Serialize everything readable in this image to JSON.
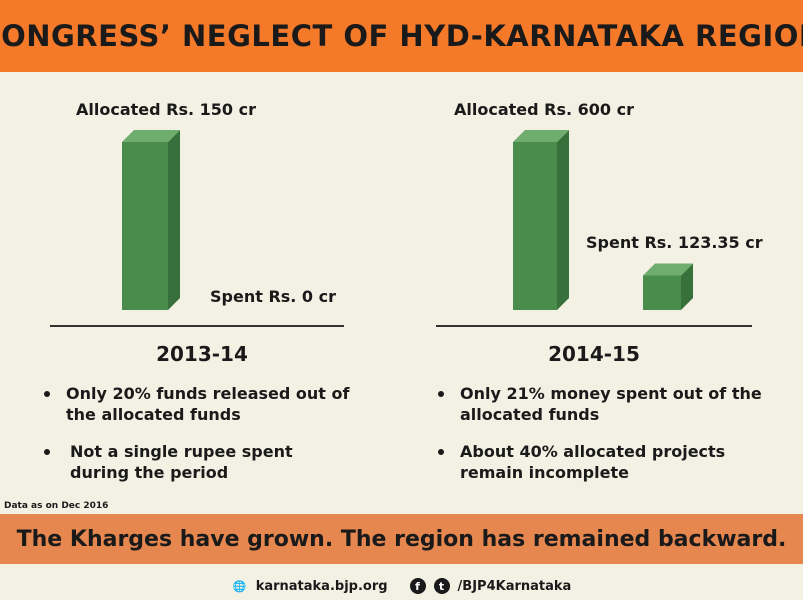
{
  "header": {
    "title": "CONGRESS’ NEGLECT OF HYD-KARNATAKA REGION"
  },
  "colors": {
    "header_bg": "#f47a2a",
    "bar_front": "#4a8c4c",
    "bar_side": "#37703a",
    "bar_top": "#6ead6d",
    "banner_bg": "#e5874f",
    "page_bg": "#f3f1e4"
  },
  "chart_data": [
    {
      "type": "bar",
      "title": "2013-14",
      "categories": [
        "Allocated",
        "Spent"
      ],
      "values": [
        150,
        0
      ],
      "data_labels": [
        "Allocated Rs. 150 cr",
        "Spent Rs. 0 cr"
      ],
      "ylabel": "Rs. cr",
      "ylim": [
        0,
        600
      ]
    },
    {
      "type": "bar",
      "title": "2014-15",
      "categories": [
        "Allocated",
        "Spent"
      ],
      "values": [
        600,
        123.35
      ],
      "data_labels": [
        "Allocated Rs. 600 cr",
        "Spent Rs. 123.35 cr"
      ],
      "ylabel": "Rs. cr",
      "ylim": [
        0,
        600
      ]
    }
  ],
  "panels": [
    {
      "year": "2013-14",
      "bullets": [
        "Only 20% funds released out of the allocated funds",
        "Not a single rupee spent during the period"
      ]
    },
    {
      "year": "2014-15",
      "bullets": [
        "Only 21% money spent out of the allocated funds",
        "About 40% allocated projects remain incomplete"
      ]
    }
  ],
  "note": "Data as on Dec 2016",
  "banner": "The Kharges have grown. The region has remained backward.",
  "footer": {
    "website": "karnataka.bjp.org",
    "social": "/BJP4Karnataka",
    "facebook_glyph": "f",
    "twitter_glyph": "t",
    "globe_glyph": "🌐"
  }
}
